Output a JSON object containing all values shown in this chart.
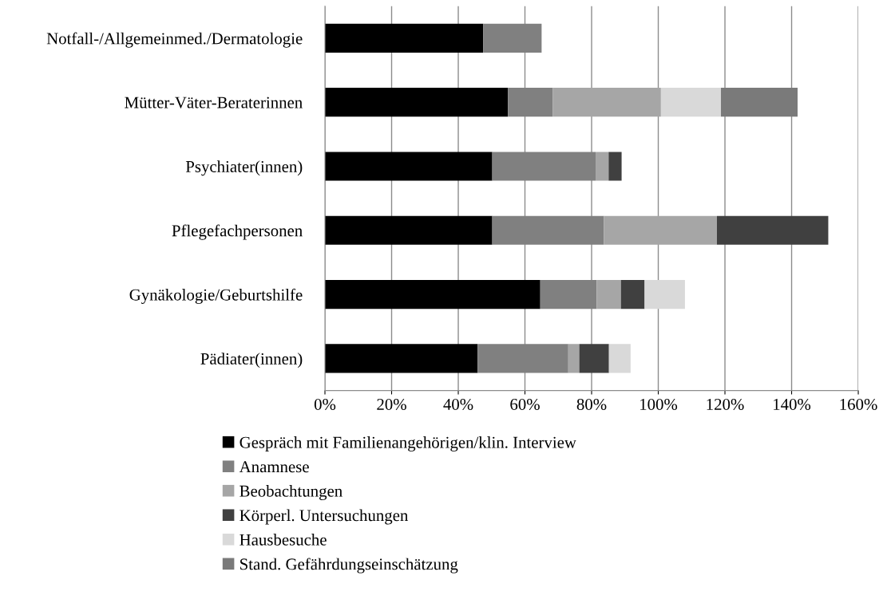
{
  "chart_data": {
    "type": "bar",
    "orientation": "horizontal",
    "stacked": true,
    "categories": [
      "Notfall-/Allgemeinmed./Dermatologie",
      "Mütter-Väter-Beraterinnen",
      "Psychiater(innen)",
      "Pflegefachpersonen",
      "Gynäkologie/Geburtshilfe",
      "Pädiater(innen)"
    ],
    "series": [
      {
        "name": "Gespräch mit Familienangehörigen/klin. Interview",
        "color": "#000000",
        "values": [
          47.5,
          54.9,
          50.2,
          50.2,
          64.6,
          45.8
        ]
      },
      {
        "name": "Anamnese",
        "color": "#808080",
        "values": [
          17.5,
          13.4,
          31,
          33.5,
          16.9,
          27.2
        ]
      },
      {
        "name": "Beobachtungen",
        "color": "#a6a6a6",
        "values": [
          null,
          32.5,
          3.9,
          33.9,
          7.3,
          3.3
        ]
      },
      {
        "name": "Körperl. Untersuchungen",
        "color": "#404040",
        "values": [
          null,
          null,
          3.9,
          33.4,
          7.1,
          8.9
        ]
      },
      {
        "name": "Hausbesuche",
        "color": "#d9d9d9",
        "values": [
          null,
          18,
          null,
          null,
          12.1,
          6.5
        ]
      },
      {
        "name": "Stand. Gefährdungseinschätzung",
        "color": "#7a7a7a",
        "values": [
          null,
          23,
          null,
          null,
          null,
          null
        ]
      }
    ],
    "xlim": [
      0,
      160
    ],
    "xticks": [
      {
        "value": 0,
        "label": "0%"
      },
      {
        "value": 20,
        "label": "20%"
      },
      {
        "value": 40,
        "label": "40%"
      },
      {
        "value": 60,
        "label": "60%"
      },
      {
        "value": 80,
        "label": "80%"
      },
      {
        "value": 100,
        "label": "100%"
      },
      {
        "value": 120,
        "label": "120%"
      },
      {
        "value": 140,
        "label": "140%"
      },
      {
        "value": 160,
        "label": "160%"
      }
    ],
    "grid": "x",
    "legend": "bottom"
  }
}
